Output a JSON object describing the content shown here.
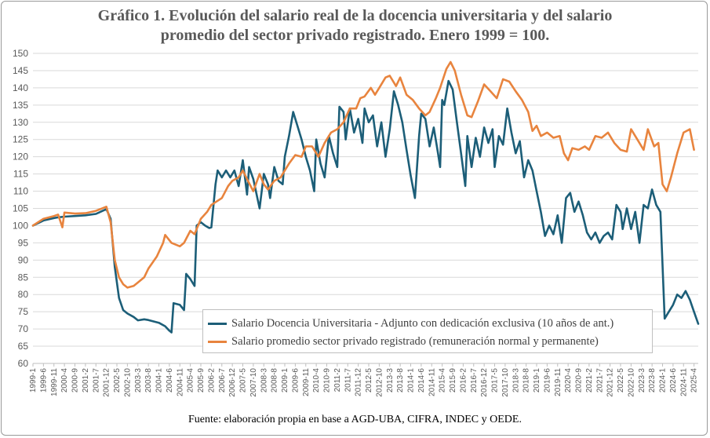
{
  "title_lines": [
    "Gráfico 1. Evolución del salario real de la docencia universitaria y del salario",
    "promedio del sector privado registrado. Enero 1999 = 100."
  ],
  "source": "Fuente:  elaboración propia en base a AGD-UBA,  CIFRA,  INDEC  y  OEDE.",
  "colors": {
    "series_0": "#1c5e78",
    "series_1": "#e8843e",
    "grid": "#d9d9d9"
  },
  "chart_data": {
    "type": "line",
    "title": "Gráfico 1. Evolución del salario real de la docencia universitaria y del salario promedio del sector privado registrado. Enero 1999 = 100.",
    "xlabel": "",
    "ylabel": "",
    "ylim": [
      60,
      150
    ],
    "yticks": [
      60,
      65,
      70,
      75,
      80,
      85,
      90,
      95,
      100,
      105,
      110,
      115,
      120,
      125,
      130,
      135,
      140,
      145,
      150
    ],
    "xlim": [
      "1999-1",
      "2025-6"
    ],
    "x_tick_labels": [
      "1999-1",
      "1999-6",
      "1999-11",
      "2000-4",
      "2000-9",
      "2001-2",
      "2001-7",
      "2001-12",
      "2002-5",
      "2002-10",
      "2003-3",
      "2003-8",
      "2004-1",
      "2004-6",
      "2004-11",
      "2005-4",
      "2005-9",
      "2006-2",
      "2006-7",
      "2006-12",
      "2007-5",
      "2007-10",
      "2008-3",
      "2008-8",
      "2009-1",
      "2009-6",
      "2009-11",
      "2010-4",
      "2010-9",
      "2011-2",
      "2011-7",
      "2011-12",
      "2012-5",
      "2012-10",
      "2013-3",
      "2013-8",
      "2014-1",
      "2014-6",
      "2014-11",
      "2015-4",
      "2015-9",
      "2016-2",
      "2016-7",
      "2016-12",
      "2017-5",
      "2017-10",
      "2018-3",
      "2018-8",
      "2019-1",
      "2019-6",
      "2019-11",
      "2020-4",
      "2020-9",
      "2021-2",
      "2021-7",
      "2021-12",
      "2022-5",
      "2022-10",
      "2023-3",
      "2023-8",
      "2024-1",
      "2024-6",
      "2024-11",
      "2025-4"
    ],
    "grid": "horizontal",
    "legend_position": "bottom-right",
    "series": [
      {
        "name": "Salario Docencia Universitaria - Adjunto con dedicación exclusiva (10 años de ant.)",
        "points": [
          [
            "1999-1",
            100
          ],
          [
            "1999-6",
            101.5
          ],
          [
            "1999-11",
            102.2
          ],
          [
            "2000-1",
            102.4
          ],
          [
            "2000-4",
            102.6
          ],
          [
            "2000-9",
            102.8
          ],
          [
            "2001-2",
            103
          ],
          [
            "2001-7",
            103.4
          ],
          [
            "2001-12",
            104.8
          ],
          [
            "2002-2",
            102
          ],
          [
            "2002-4",
            88
          ],
          [
            "2002-6",
            79
          ],
          [
            "2002-8",
            75.5
          ],
          [
            "2002-10",
            74.5
          ],
          [
            "2003-1",
            73.5
          ],
          [
            "2003-3",
            72.5
          ],
          [
            "2003-6",
            72.8
          ],
          [
            "2003-8",
            72.6
          ],
          [
            "2004-1",
            71.8
          ],
          [
            "2004-4",
            70.8
          ],
          [
            "2004-6",
            69.5
          ],
          [
            "2004-7",
            69
          ],
          [
            "2004-8",
            77.5
          ],
          [
            "2004-11",
            77
          ],
          [
            "2005-1",
            75.5
          ],
          [
            "2005-2",
            86
          ],
          [
            "2005-4",
            84.5
          ],
          [
            "2005-6",
            82.5
          ],
          [
            "2005-7",
            100
          ],
          [
            "2005-9",
            101
          ],
          [
            "2005-11",
            100
          ],
          [
            "2006-1",
            99.3
          ],
          [
            "2006-2",
            99.5
          ],
          [
            "2006-4",
            112
          ],
          [
            "2006-5",
            116
          ],
          [
            "2006-7",
            114
          ],
          [
            "2006-9",
            116
          ],
          [
            "2006-11",
            114
          ],
          [
            "2007-1",
            116
          ],
          [
            "2007-3",
            111.5
          ],
          [
            "2007-5",
            119
          ],
          [
            "2007-7",
            109
          ],
          [
            "2007-8",
            117
          ],
          [
            "2007-10",
            113.5
          ],
          [
            "2008-1",
            105
          ],
          [
            "2008-3",
            115
          ],
          [
            "2008-5",
            112
          ],
          [
            "2008-6",
            108
          ],
          [
            "2008-8",
            117
          ],
          [
            "2008-10",
            113
          ],
          [
            "2008-12",
            112
          ],
          [
            "2009-1",
            120
          ],
          [
            "2009-3",
            126
          ],
          [
            "2009-5",
            133
          ],
          [
            "2009-7",
            129
          ],
          [
            "2009-9",
            125
          ],
          [
            "2009-11",
            120
          ],
          [
            "2010-1",
            116
          ],
          [
            "2010-3",
            110
          ],
          [
            "2010-4",
            125
          ],
          [
            "2010-6",
            118
          ],
          [
            "2010-8",
            114
          ],
          [
            "2010-10",
            126
          ],
          [
            "2010-12",
            121
          ],
          [
            "2011-2",
            117
          ],
          [
            "2011-3",
            134.5
          ],
          [
            "2011-5",
            133
          ],
          [
            "2011-6",
            125
          ],
          [
            "2011-8",
            134
          ],
          [
            "2011-10",
            127
          ],
          [
            "2011-12",
            131
          ],
          [
            "2012-2",
            124
          ],
          [
            "2012-3",
            134
          ],
          [
            "2012-5",
            130
          ],
          [
            "2012-7",
            132
          ],
          [
            "2012-9",
            123
          ],
          [
            "2012-11",
            130
          ],
          [
            "2013-1",
            120
          ],
          [
            "2013-3",
            128
          ],
          [
            "2013-5",
            139
          ],
          [
            "2013-7",
            135
          ],
          [
            "2013-9",
            130
          ],
          [
            "2013-11",
            122
          ],
          [
            "2014-1",
            114.5
          ],
          [
            "2014-3",
            108
          ],
          [
            "2014-5",
            126
          ],
          [
            "2014-6",
            132.5
          ],
          [
            "2014-8",
            131
          ],
          [
            "2014-10",
            123
          ],
          [
            "2014-12",
            128.5
          ],
          [
            "2015-2",
            121
          ],
          [
            "2015-3",
            117
          ],
          [
            "2015-4",
            136.5
          ],
          [
            "2015-5",
            135
          ],
          [
            "2015-7",
            142
          ],
          [
            "2015-9",
            139.5
          ],
          [
            "2015-11",
            130
          ],
          [
            "2016-1",
            121
          ],
          [
            "2016-3",
            111.5
          ],
          [
            "2016-4",
            126
          ],
          [
            "2016-6",
            117
          ],
          [
            "2016-8",
            125.5
          ],
          [
            "2016-10",
            120
          ],
          [
            "2016-12",
            128.5
          ],
          [
            "2017-2",
            124
          ],
          [
            "2017-4",
            128
          ],
          [
            "2017-5",
            117
          ],
          [
            "2017-7",
            126
          ],
          [
            "2017-9",
            123.5
          ],
          [
            "2017-11",
            134
          ],
          [
            "2018-1",
            127
          ],
          [
            "2018-3",
            121
          ],
          [
            "2018-5",
            124.5
          ],
          [
            "2018-7",
            114
          ],
          [
            "2018-9",
            119
          ],
          [
            "2018-11",
            116
          ],
          [
            "2019-1",
            110
          ],
          [
            "2019-3",
            104
          ],
          [
            "2019-5",
            97
          ],
          [
            "2019-7",
            100
          ],
          [
            "2019-9",
            97.5
          ],
          [
            "2019-11",
            103
          ],
          [
            "2020-1",
            95
          ],
          [
            "2020-3",
            108
          ],
          [
            "2020-5",
            109.5
          ],
          [
            "2020-7",
            104
          ],
          [
            "2020-9",
            107
          ],
          [
            "2020-11",
            103
          ],
          [
            "2021-1",
            98
          ],
          [
            "2021-3",
            96
          ],
          [
            "2021-5",
            98
          ],
          [
            "2021-7",
            95
          ],
          [
            "2021-9",
            97
          ],
          [
            "2021-11",
            98
          ],
          [
            "2022-1",
            96
          ],
          [
            "2022-3",
            106
          ],
          [
            "2022-5",
            104
          ],
          [
            "2022-6",
            99
          ],
          [
            "2022-8",
            105
          ],
          [
            "2022-10",
            99
          ],
          [
            "2022-12",
            104
          ],
          [
            "2023-2",
            95
          ],
          [
            "2023-4",
            106
          ],
          [
            "2023-6",
            105
          ],
          [
            "2023-8",
            110.5
          ],
          [
            "2023-10",
            106
          ],
          [
            "2023-12",
            104
          ],
          [
            "2024-2",
            73
          ],
          [
            "2024-4",
            75
          ],
          [
            "2024-6",
            77
          ],
          [
            "2024-8",
            80
          ],
          [
            "2024-10",
            79
          ],
          [
            "2024-12",
            81
          ],
          [
            "2025-2",
            78.5
          ],
          [
            "2025-4",
            75
          ],
          [
            "2025-6",
            71.5
          ]
        ]
      },
      {
        "name": "Salario promedio sector privado registrado (remuneración normal y permanente)",
        "points": [
          [
            "1999-1",
            100
          ],
          [
            "1999-6",
            102
          ],
          [
            "1999-11",
            102.8
          ],
          [
            "2000-1",
            103.2
          ],
          [
            "2000-3",
            99.5
          ],
          [
            "2000-4",
            103.8
          ],
          [
            "2000-9",
            103.5
          ],
          [
            "2001-2",
            103.6
          ],
          [
            "2001-7",
            104.3
          ],
          [
            "2001-12",
            105.5
          ],
          [
            "2002-2",
            101
          ],
          [
            "2002-4",
            90
          ],
          [
            "2002-6",
            85
          ],
          [
            "2002-8",
            83
          ],
          [
            "2002-10",
            82
          ],
          [
            "2003-1",
            82.5
          ],
          [
            "2003-3",
            83.5
          ],
          [
            "2003-6",
            85
          ],
          [
            "2003-8",
            87.5
          ],
          [
            "2003-12",
            91
          ],
          [
            "2004-3",
            95
          ],
          [
            "2004-4",
            97.3
          ],
          [
            "2004-7",
            95
          ],
          [
            "2004-11",
            94
          ],
          [
            "2005-1",
            95
          ],
          [
            "2005-4",
            98.5
          ],
          [
            "2005-6",
            97.5
          ],
          [
            "2005-9",
            102
          ],
          [
            "2005-12",
            104
          ],
          [
            "2006-2",
            106
          ],
          [
            "2006-4",
            106.8
          ],
          [
            "2006-7",
            108
          ],
          [
            "2006-10",
            111.5
          ],
          [
            "2006-12",
            113
          ],
          [
            "2007-3",
            114
          ],
          [
            "2007-5",
            116
          ],
          [
            "2007-7",
            113.5
          ],
          [
            "2007-10",
            110
          ],
          [
            "2008-1",
            115
          ],
          [
            "2008-3",
            112
          ],
          [
            "2008-5",
            110.5
          ],
          [
            "2008-8",
            113
          ],
          [
            "2008-11",
            114
          ],
          [
            "2009-1",
            116
          ],
          [
            "2009-3",
            118
          ],
          [
            "2009-6",
            120.5
          ],
          [
            "2009-9",
            120
          ],
          [
            "2009-11",
            123
          ],
          [
            "2010-2",
            123
          ],
          [
            "2010-5",
            120
          ],
          [
            "2010-8",
            124
          ],
          [
            "2010-11",
            127
          ],
          [
            "2011-2",
            128
          ],
          [
            "2011-5",
            130
          ],
          [
            "2011-8",
            134
          ],
          [
            "2011-11",
            134
          ],
          [
            "2012-1",
            137
          ],
          [
            "2012-3",
            137.5
          ],
          [
            "2012-6",
            140
          ],
          [
            "2012-8",
            138
          ],
          [
            "2012-10",
            140
          ],
          [
            "2013-1",
            143
          ],
          [
            "2013-3",
            143.5
          ],
          [
            "2013-6",
            140.5
          ],
          [
            "2013-8",
            143
          ],
          [
            "2013-11",
            138
          ],
          [
            "2014-2",
            136.5
          ],
          [
            "2014-5",
            134
          ],
          [
            "2014-8",
            132
          ],
          [
            "2014-10",
            133
          ],
          [
            "2015-1",
            137
          ],
          [
            "2015-3",
            140
          ],
          [
            "2015-6",
            145.5
          ],
          [
            "2015-8",
            147.5
          ],
          [
            "2015-10",
            145
          ],
          [
            "2016-1",
            138
          ],
          [
            "2016-4",
            132
          ],
          [
            "2016-6",
            131.5
          ],
          [
            "2016-9",
            136
          ],
          [
            "2016-12",
            141
          ],
          [
            "2017-3",
            139
          ],
          [
            "2017-6",
            137
          ],
          [
            "2017-9",
            142.5
          ],
          [
            "2017-12",
            141.8
          ],
          [
            "2018-3",
            139
          ],
          [
            "2018-6",
            136.5
          ],
          [
            "2018-9",
            133
          ],
          [
            "2018-11",
            127.5
          ],
          [
            "2019-1",
            129
          ],
          [
            "2019-3",
            126
          ],
          [
            "2019-6",
            127
          ],
          [
            "2019-9",
            125.5
          ],
          [
            "2019-12",
            126
          ],
          [
            "2020-2",
            121
          ],
          [
            "2020-4",
            119
          ],
          [
            "2020-6",
            122.5
          ],
          [
            "2020-9",
            122
          ],
          [
            "2020-12",
            123
          ],
          [
            "2021-2",
            122
          ],
          [
            "2021-5",
            126
          ],
          [
            "2021-8",
            125.5
          ],
          [
            "2021-11",
            127
          ],
          [
            "2022-2",
            124
          ],
          [
            "2022-5",
            122
          ],
          [
            "2022-8",
            121.5
          ],
          [
            "2022-10",
            128
          ],
          [
            "2023-1",
            125
          ],
          [
            "2023-4",
            122
          ],
          [
            "2023-6",
            128
          ],
          [
            "2023-9",
            123
          ],
          [
            "2023-11",
            124
          ],
          [
            "2024-1",
            112
          ],
          [
            "2024-3",
            110
          ],
          [
            "2024-5",
            114
          ],
          [
            "2024-8",
            121
          ],
          [
            "2024-11",
            127
          ],
          [
            "2025-2",
            128
          ],
          [
            "2025-4",
            122
          ]
        ]
      }
    ]
  }
}
